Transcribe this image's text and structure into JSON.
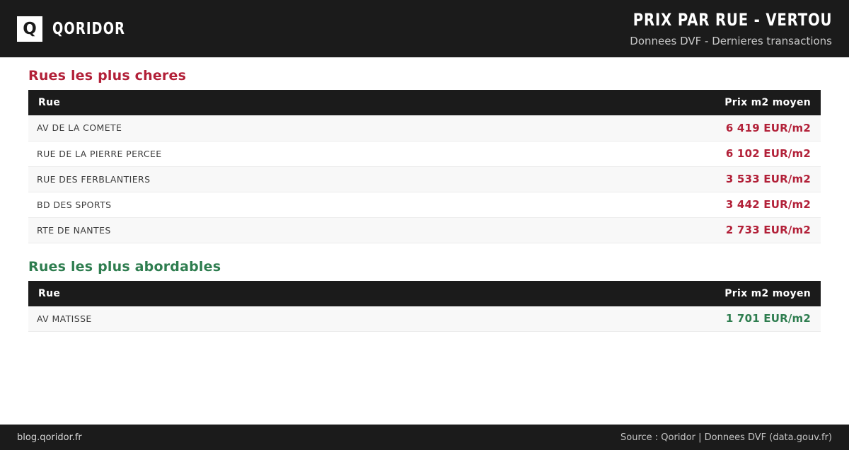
{
  "brand": {
    "name": "QORIDOR",
    "logo_letter": "Q"
  },
  "header": {
    "title": "PRIX PAR RUE - VERTOU",
    "subtitle": "Donnees DVF - Dernieres transactions"
  },
  "sections": [
    {
      "id": "expensive",
      "heading": "Rues les plus cheres",
      "heading_color": "#b22038",
      "price_color": "#b22038",
      "columns": [
        "Rue",
        "Prix m2 moyen"
      ],
      "rows": [
        {
          "street": "AV DE LA COMETE",
          "price": "6 419 EUR/m2"
        },
        {
          "street": "RUE DE LA PIERRE PERCEE",
          "price": "6 102 EUR/m2"
        },
        {
          "street": "RUE DES FERBLANTIERS",
          "price": "3 533 EUR/m2"
        },
        {
          "street": "BD DES SPORTS",
          "price": "3 442 EUR/m2"
        },
        {
          "street": "RTE DE NANTES",
          "price": "2 733 EUR/m2"
        }
      ]
    },
    {
      "id": "affordable",
      "heading": "Rues les plus abordables",
      "heading_color": "#2e7d4f",
      "price_color": "#2e7d4f",
      "columns": [
        "Rue",
        "Prix m2 moyen"
      ],
      "rows": [
        {
          "street": "AV MATISSE",
          "price": "1 701 EUR/m2"
        }
      ]
    }
  ],
  "footer": {
    "left": "blog.qoridor.fr",
    "right": "Source : Qoridor | Donnees DVF (data.gouv.fr)"
  },
  "colors": {
    "dark": "#1b1b1b",
    "expensive_accent": "#b22038",
    "affordable_accent": "#2e7d4f",
    "row_alt": "#f8f8f8"
  }
}
